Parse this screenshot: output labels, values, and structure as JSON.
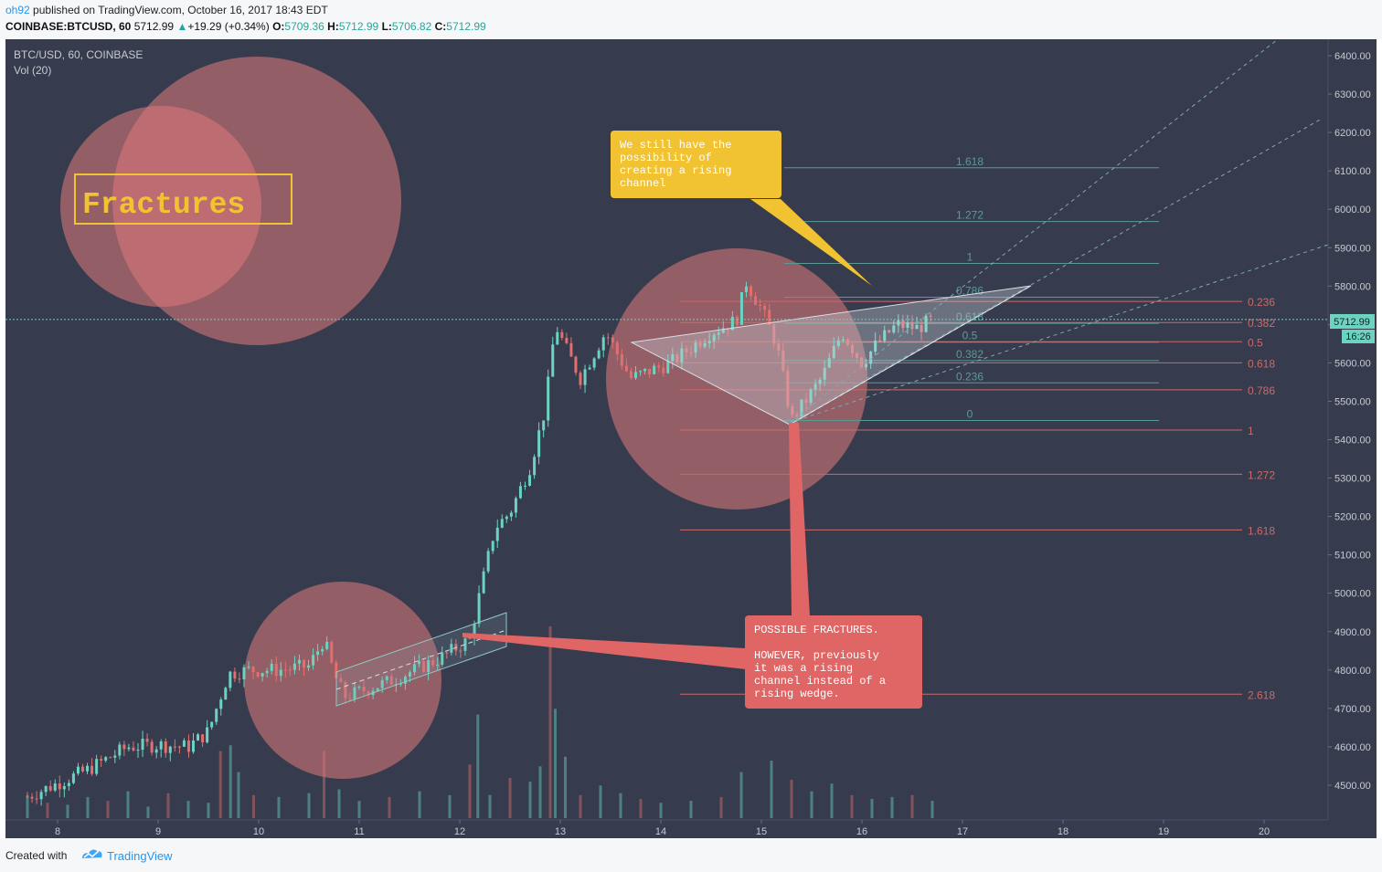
{
  "header": {
    "user": "oh92",
    "published": "published on TradingView.com, October 16, 2017 18:43 EDT",
    "symbol": "COINBASE:BTCUSD, 60",
    "last": "5712.99",
    "change": "+19.29 (+0.34%)",
    "o_label": "O:",
    "o_value": "5709.36",
    "h_label": "H:",
    "h_value": "5712.99",
    "l_label": "L:",
    "l_value": "5706.82",
    "c_label": "C:",
    "c_value": "5712.99"
  },
  "legend": {
    "line1": "BTC/USD, 60, COINBASE",
    "line2": "Vol (20)"
  },
  "price_badge": {
    "price": "5712.99",
    "countdown": "16:26"
  },
  "annotations": {
    "fractures_title": "Fractures",
    "callout_yellow": [
      "We still have the",
      "possibility of",
      "creating a rising",
      "channel"
    ],
    "callout_red": [
      "POSSIBLE FRACTURES.",
      "",
      "HOWEVER, previously",
      "it was a rising",
      "channel instead of a",
      "rising wedge."
    ]
  },
  "footer": {
    "created_with": "Created with",
    "brand": "TradingView"
  },
  "colors": {
    "background": "#363c4e",
    "up": "#6bd3c0",
    "down": "#e36e6e",
    "fib_green": "#5a9a95",
    "fib_red": "#c96a6a",
    "circle": "#e07a7a",
    "callout_yellow": "#f1c232",
    "callout_red": "#e06666"
  },
  "chart_data": {
    "type": "candlestick",
    "title": "BTC/USD, 60, COINBASE",
    "indicator": "Vol (20)",
    "x_ticks": [
      "8",
      "9",
      "10",
      "11",
      "12",
      "13",
      "14",
      "15",
      "16",
      "17",
      "18",
      "19",
      "20"
    ],
    "y_ticks": [
      "6400.00",
      "6300.00",
      "6200.00",
      "6100.00",
      "6000.00",
      "5900.00",
      "5800.00",
      "5700.00",
      "5600.00",
      "5500.00",
      "5400.00",
      "5300.00",
      "5200.00",
      "5100.00",
      "5000.00",
      "4900.00",
      "4800.00",
      "4700.00",
      "4600.00",
      "4500.00"
    ],
    "ylim": [
      4450,
      6435
    ],
    "xlim": [
      7.5,
      20.7
    ],
    "last_price": 5712.99,
    "ohlc_anchors_day_close": [
      [
        7.7,
        4470
      ],
      [
        8.3,
        4540
      ],
      [
        8.7,
        4600
      ],
      [
        9.0,
        4605
      ],
      [
        9.3,
        4600
      ],
      [
        9.5,
        4640
      ],
      [
        9.7,
        4790
      ],
      [
        9.9,
        4800
      ],
      [
        10.2,
        4800
      ],
      [
        10.5,
        4810
      ],
      [
        10.65,
        4880
      ],
      [
        10.75,
        4790
      ],
      [
        10.85,
        4730
      ],
      [
        11.3,
        4770
      ],
      [
        11.8,
        4830
      ],
      [
        12.1,
        4880
      ],
      [
        12.2,
        5000
      ],
      [
        12.35,
        5170
      ],
      [
        12.5,
        5210
      ],
      [
        12.7,
        5330
      ],
      [
        12.85,
        5480
      ],
      [
        12.95,
        5700
      ],
      [
        13.05,
        5640
      ],
      [
        13.2,
        5560
      ],
      [
        13.45,
        5680
      ],
      [
        13.7,
        5560
      ],
      [
        14.1,
        5600
      ],
      [
        14.5,
        5680
      ],
      [
        14.75,
        5710
      ],
      [
        14.85,
        5810
      ],
      [
        15.0,
        5740
      ],
      [
        15.15,
        5650
      ],
      [
        15.3,
        5450
      ],
      [
        15.6,
        5560
      ],
      [
        15.8,
        5680
      ],
      [
        16.0,
        5600
      ],
      [
        16.15,
        5650
      ],
      [
        16.35,
        5700
      ],
      [
        16.55,
        5690
      ],
      [
        16.7,
        5712.99
      ]
    ],
    "fibonacci_upper": {
      "levels": [
        "0",
        "0.236",
        "0.382",
        "0.5",
        "0.618",
        "0.786",
        "1",
        "1.272",
        "1.618"
      ],
      "prices": [
        5450,
        5548,
        5606,
        5654,
        5703,
        5771,
        5859,
        5968,
        6108
      ]
    },
    "fibonacci_lower": {
      "levels": [
        "0.236",
        "0.382",
        "0.5",
        "0.618",
        "0.786",
        "1",
        "1.272",
        "1.618",
        "2.618"
      ],
      "prices": [
        5760,
        5705,
        5655,
        5600,
        5530,
        5425,
        5310,
        5165,
        4737
      ]
    },
    "volume_scale_max": 100,
    "volume": [
      [
        7.7,
        12
      ],
      [
        7.9,
        8
      ],
      [
        8.1,
        7
      ],
      [
        8.3,
        11
      ],
      [
        8.5,
        9
      ],
      [
        8.7,
        14
      ],
      [
        8.9,
        6
      ],
      [
        9.1,
        13
      ],
      [
        9.3,
        9
      ],
      [
        9.5,
        8
      ],
      [
        9.62,
        35
      ],
      [
        9.72,
        38
      ],
      [
        9.8,
        24
      ],
      [
        9.95,
        12
      ],
      [
        10.2,
        11
      ],
      [
        10.5,
        13
      ],
      [
        10.65,
        35
      ],
      [
        10.8,
        15
      ],
      [
        11.0,
        9
      ],
      [
        11.3,
        11
      ],
      [
        11.6,
        14
      ],
      [
        11.9,
        12
      ],
      [
        12.1,
        28
      ],
      [
        12.18,
        54
      ],
      [
        12.3,
        12
      ],
      [
        12.5,
        21
      ],
      [
        12.7,
        19
      ],
      [
        12.8,
        27
      ],
      [
        12.9,
        100
      ],
      [
        12.95,
        57
      ],
      [
        13.05,
        32
      ],
      [
        13.2,
        12
      ],
      [
        13.4,
        17
      ],
      [
        13.6,
        13
      ],
      [
        13.8,
        10
      ],
      [
        14.0,
        8
      ],
      [
        14.3,
        9
      ],
      [
        14.6,
        11
      ],
      [
        14.8,
        24
      ],
      [
        15.1,
        30
      ],
      [
        15.3,
        20
      ],
      [
        15.5,
        14
      ],
      [
        15.7,
        18
      ],
      [
        15.9,
        12
      ],
      [
        16.1,
        10
      ],
      [
        16.3,
        11
      ],
      [
        16.5,
        12
      ],
      [
        16.7,
        9
      ]
    ]
  }
}
